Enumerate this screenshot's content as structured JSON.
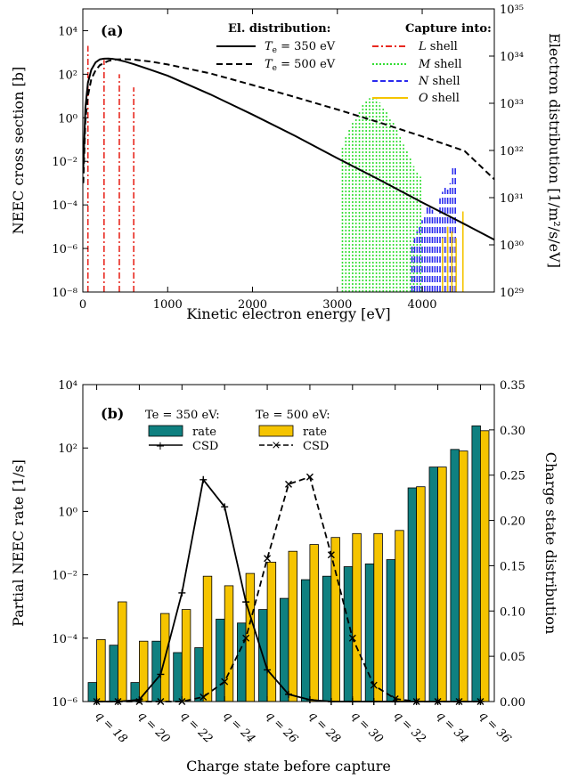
{
  "chart_data": [
    {
      "panel": "(a)",
      "type": "line",
      "xlabel": "Kinetic electron energy [eV]",
      "ylabel": "NEEC cross section [b]",
      "y2label": "Electron distribution [1/m²/s/eV]",
      "xlim": [
        0,
        4850
      ],
      "ylim": [
        1e-08,
        100000.0
      ],
      "y2lim": [
        1e+29,
        1e+35
      ],
      "yscale": "log",
      "x_ticks": [
        "0",
        "1000",
        "2000",
        "3000",
        "4000"
      ],
      "x_tick_values": [
        0,
        1000,
        2000,
        3000,
        4000
      ],
      "y_ticks": [
        "10⁻⁸",
        "10⁻⁶",
        "10⁻⁴",
        "10⁻²",
        "10⁰",
        "10²",
        "10⁴"
      ],
      "y_tick_exponents": [
        -8,
        -6,
        -4,
        -2,
        0,
        2,
        4
      ],
      "y2_ticks": [
        "10²⁹",
        "10³⁰",
        "10³¹",
        "10³²",
        "10³³",
        "10³⁴",
        "10³⁵"
      ],
      "legend_distribution_title": "El. distribution:",
      "legend_capture_title": "Capture into:",
      "distribution_series": [
        {
          "name": "Te = 350 eV",
          "label_text": "T",
          "label_sub": "e",
          "label_rest": " = 350 eV",
          "color": "#000000",
          "dash": "solid",
          "x": [
            5,
            30,
            60,
            100,
            150,
            200,
            250,
            300,
            350,
            400,
            500,
            600,
            800,
            1000,
            1500,
            2000,
            2500,
            3000,
            3500,
            4000,
            4500,
            4850
          ],
          "y": [
            0.005,
            3,
            40,
            160,
            350,
            480,
            520,
            530,
            510,
            470,
            380,
            290,
            160,
            85,
            12,
            1.4,
            0.15,
            0.014,
            0.0014,
            0.00013,
            1.3e-05,
            2.5e-06
          ]
        },
        {
          "name": "Te = 500 eV",
          "label_text": "T",
          "label_sub": "e",
          "label_rest": " = 500 eV",
          "color": "#000000",
          "dash": "dashed",
          "x": [
            5,
            30,
            60,
            100,
            150,
            200,
            300,
            400,
            500,
            600,
            800,
            1000,
            1500,
            2000,
            2500,
            3000,
            3500,
            4000,
            4500,
            4850
          ],
          "y": [
            0.001,
            0.8,
            10,
            60,
            150,
            260,
            410,
            480,
            490,
            470,
            380,
            280,
            110,
            32,
            9,
            2.4,
            0.6,
            0.14,
            0.03,
            0.0015
          ]
        }
      ],
      "capture_series": [
        {
          "name": "L shell",
          "label_italic": "L",
          "label_rest": " shell",
          "color": "#e8281f",
          "dash": "dashdot",
          "x": [
            60,
            250,
            430,
            600
          ],
          "y": [
            2000,
            450,
            100,
            25
          ]
        },
        {
          "name": "M shell",
          "label_italic": "M",
          "label_rest": " shell",
          "color": "#33dd33",
          "dash": "dotted",
          "x": [
            3060,
            3100,
            3140,
            3180,
            3220,
            3260,
            3300,
            3340,
            3380,
            3420,
            3460,
            3500,
            3540,
            3580,
            3620,
            3660,
            3700,
            3740,
            3780,
            3820,
            3860,
            3900,
            3940,
            3980
          ],
          "y": [
            0.05,
            0.15,
            0.3,
            0.6,
            1,
            2,
            4,
            6,
            8,
            9,
            7,
            5,
            3,
            2,
            1,
            0.6,
            0.3,
            0.15,
            0.06,
            0.03,
            0.015,
            0.006,
            0.003,
            0.002
          ]
        },
        {
          "name": "N shell",
          "label_italic": "N",
          "label_rest": " shell",
          "color": "#2a2aee",
          "dash": "dashed",
          "x": [
            3880,
            3910,
            3940,
            3970,
            4000,
            4030,
            4060,
            4090,
            4120,
            4150,
            4180,
            4210,
            4240,
            4270,
            4300,
            4330,
            4360,
            4390
          ],
          "y": [
            1.5e-06,
            3e-06,
            6e-06,
            1e-05,
            2e-05,
            4e-05,
            8e-05,
            0.0001,
            6e-05,
            4e-05,
            3e-05,
            0.0002,
            0.0004,
            0.0007,
            0.0005,
            0.001,
            0.005,
            0.006
          ]
        },
        {
          "name": "O shell",
          "label_italic": "O",
          "label_rest": " shell",
          "color": "#f5c400",
          "dash": "solid",
          "x": [
            4240,
            4300,
            4350,
            4400,
            4480
          ],
          "y": [
            3e-06,
            1e-05,
            6e-06,
            3e-06,
            5e-05
          ]
        }
      ]
    },
    {
      "panel": "(b)",
      "type": "bar",
      "xlabel": "Charge state before capture",
      "ylabel": "Partial NEEC rate [1/s]",
      "y2label": "Charge state distribution",
      "yscale": "log",
      "ylim": [
        1e-06,
        10000.0
      ],
      "y2lim": [
        0,
        0.35
      ],
      "y_ticks": [
        "10⁻⁶",
        "10⁻⁴",
        "10⁻²",
        "10⁰",
        "10²",
        "10⁴"
      ],
      "y_tick_exponents": [
        -6,
        -4,
        -2,
        0,
        2,
        4
      ],
      "y2_ticks": [
        "0.00",
        "0.05",
        "0.10",
        "0.15",
        "0.20",
        "0.25",
        "0.30",
        "0.35"
      ],
      "y2_tick_values": [
        0,
        0.05,
        0.1,
        0.15,
        0.2,
        0.25,
        0.3,
        0.35
      ],
      "x_tick_labels": [
        "q = 18",
        "q = 20",
        "q = 22",
        "q = 24",
        "q = 26",
        "q = 28",
        "q = 30",
        "q = 32",
        "q = 34",
        "q = 36"
      ],
      "x_tick_values": [
        18,
        20,
        22,
        24,
        26,
        28,
        30,
        32,
        34,
        36
      ],
      "categories": [
        18,
        19,
        20,
        21,
        22,
        23,
        24,
        25,
        26,
        27,
        28,
        29,
        30,
        31,
        32,
        33,
        34,
        35,
        36
      ],
      "legend_group_350": "Te = 350 eV:",
      "legend_group_500": "Te = 500 eV:",
      "legend_rate_label": "rate",
      "legend_csd_label": "CSD",
      "series": [
        {
          "name": "rate (Te = 350 eV)",
          "color": "#0f8080",
          "values": [
            4e-06,
            6e-05,
            4e-06,
            8e-05,
            3.5e-05,
            5e-05,
            0.0004,
            0.0003,
            0.0008,
            0.0018,
            0.007,
            0.009,
            0.018,
            0.022,
            0.03,
            5.5,
            25,
            90,
            500
          ]
        },
        {
          "name": "rate (Te = 500 eV)",
          "color": "#f5c400",
          "values": [
            9e-05,
            0.0014,
            8e-05,
            0.0006,
            0.0008,
            0.009,
            0.0045,
            0.011,
            0.025,
            0.055,
            0.09,
            0.15,
            0.2,
            0.2,
            0.25,
            6,
            25,
            80,
            350
          ]
        },
        {
          "name": "CSD (Te = 350 eV)",
          "axis": "y2",
          "color": "#000000",
          "dash": "solid",
          "marker": "+",
          "values": [
            0.0,
            0.0,
            0.002,
            0.03,
            0.12,
            0.245,
            0.215,
            0.11,
            0.035,
            0.008,
            0.002,
            0.0,
            0.0,
            0.0,
            0.0,
            0.0,
            0.0,
            0.0,
            0.0
          ]
        },
        {
          "name": "CSD (Te = 500 eV)",
          "axis": "y2",
          "color": "#000000",
          "dash": "dashed",
          "marker": "x",
          "values": [
            0.0,
            0.0,
            0.0,
            0.0,
            0.0,
            0.005,
            0.022,
            0.07,
            0.158,
            0.24,
            0.248,
            0.162,
            0.07,
            0.018,
            0.003,
            0.0,
            0.0,
            0.0,
            0.0
          ]
        }
      ]
    }
  ]
}
